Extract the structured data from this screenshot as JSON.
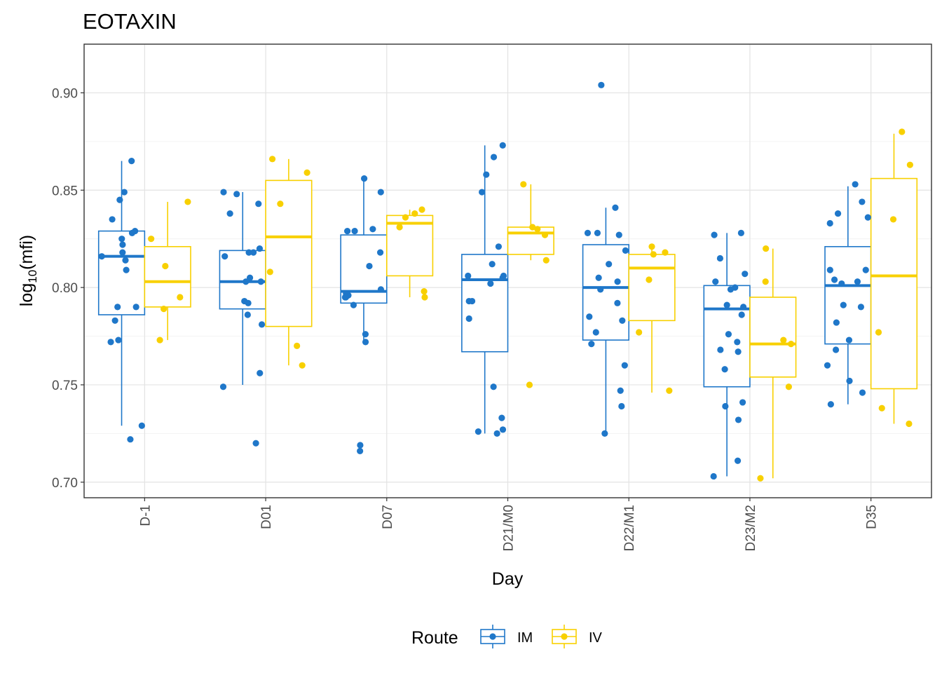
{
  "chart_data": {
    "type": "box",
    "title": "EOTAXIN",
    "xlabel": "Day",
    "ylabel_main": "log",
    "ylabel_sub": "10",
    "ylabel_rest": "(mfi)",
    "ylim": [
      0.692,
      0.925
    ],
    "yticks": [
      0.7,
      0.75,
      0.8,
      0.85,
      0.9
    ],
    "ytick_labels": [
      "0.70",
      "0.75",
      "0.80",
      "0.85",
      "0.90"
    ],
    "categories": [
      "D-1",
      "D01",
      "D07",
      "D21/M0",
      "D22/M1",
      "D23/M2",
      "D35"
    ],
    "grid": true,
    "legend": {
      "title": "Route",
      "position": "bottom"
    },
    "series": [
      {
        "name": "IM",
        "color": "#1f77c9",
        "boxes": [
          {
            "min": 0.729,
            "q1": 0.786,
            "median": 0.816,
            "q3": 0.829,
            "max": 0.865,
            "points": [
              0.865,
              0.849,
              0.845,
              0.835,
              0.829,
              0.828,
              0.825,
              0.822,
              0.818,
              0.816,
              0.814,
              0.809,
              0.79,
              0.79,
              0.783,
              0.773,
              0.772,
              0.729,
              0.722
            ]
          },
          {
            "min": 0.75,
            "q1": 0.789,
            "median": 0.803,
            "q3": 0.819,
            "max": 0.849,
            "points": [
              0.849,
              0.848,
              0.843,
              0.838,
              0.82,
              0.818,
              0.818,
              0.816,
              0.805,
              0.803,
              0.803,
              0.793,
              0.792,
              0.786,
              0.781,
              0.756,
              0.749,
              0.72
            ]
          },
          {
            "min": 0.772,
            "q1": 0.792,
            "median": 0.798,
            "q3": 0.827,
            "max": 0.855,
            "points": [
              0.856,
              0.849,
              0.83,
              0.829,
              0.829,
              0.818,
              0.811,
              0.799,
              0.797,
              0.796,
              0.795,
              0.795,
              0.791,
              0.776,
              0.772,
              0.719,
              0.716
            ]
          },
          {
            "min": 0.725,
            "q1": 0.767,
            "median": 0.804,
            "q3": 0.817,
            "max": 0.873,
            "points": [
              0.873,
              0.867,
              0.858,
              0.849,
              0.821,
              0.812,
              0.806,
              0.806,
              0.805,
              0.802,
              0.793,
              0.793,
              0.784,
              0.749,
              0.733,
              0.727,
              0.726,
              0.725
            ]
          },
          {
            "min": 0.725,
            "q1": 0.773,
            "median": 0.8,
            "q3": 0.822,
            "max": 0.841,
            "points": [
              0.904,
              0.841,
              0.828,
              0.828,
              0.827,
              0.819,
              0.812,
              0.805,
              0.803,
              0.799,
              0.792,
              0.785,
              0.783,
              0.777,
              0.771,
              0.76,
              0.747,
              0.739,
              0.725
            ]
          },
          {
            "min": 0.703,
            "q1": 0.749,
            "median": 0.789,
            "q3": 0.801,
            "max": 0.828,
            "points": [
              0.828,
              0.827,
              0.815,
              0.807,
              0.803,
              0.8,
              0.799,
              0.791,
              0.79,
              0.786,
              0.776,
              0.772,
              0.768,
              0.767,
              0.758,
              0.741,
              0.739,
              0.732,
              0.711,
              0.703
            ]
          },
          {
            "min": 0.74,
            "q1": 0.771,
            "median": 0.801,
            "q3": 0.821,
            "max": 0.852,
            "points": [
              0.853,
              0.844,
              0.838,
              0.836,
              0.833,
              0.809,
              0.809,
              0.804,
              0.803,
              0.802,
              0.791,
              0.79,
              0.782,
              0.773,
              0.768,
              0.76,
              0.752,
              0.746,
              0.74
            ]
          }
        ]
      },
      {
        "name": "IV",
        "color": "#f8d000",
        "boxes": [
          {
            "min": 0.773,
            "q1": 0.79,
            "median": 0.803,
            "q3": 0.821,
            "max": 0.844,
            "points": [
              0.844,
              0.825,
              0.811,
              0.795,
              0.789,
              0.773
            ]
          },
          {
            "min": 0.76,
            "q1": 0.78,
            "median": 0.826,
            "q3": 0.855,
            "max": 0.866,
            "points": [
              0.866,
              0.859,
              0.843,
              0.808,
              0.77,
              0.76
            ]
          },
          {
            "min": 0.795,
            "q1": 0.806,
            "median": 0.833,
            "q3": 0.837,
            "max": 0.84,
            "points": [
              0.84,
              0.838,
              0.836,
              0.831,
              0.798,
              0.795
            ]
          },
          {
            "min": 0.814,
            "q1": 0.817,
            "median": 0.828,
            "q3": 0.831,
            "max": 0.853,
            "points": [
              0.853,
              0.831,
              0.83,
              0.827,
              0.814,
              0.75
            ]
          },
          {
            "min": 0.746,
            "q1": 0.783,
            "median": 0.81,
            "q3": 0.817,
            "max": 0.821,
            "points": [
              0.821,
              0.818,
              0.817,
              0.804,
              0.777,
              0.747
            ]
          },
          {
            "min": 0.702,
            "q1": 0.754,
            "median": 0.771,
            "q3": 0.795,
            "max": 0.82,
            "points": [
              0.82,
              0.803,
              0.773,
              0.771,
              0.749,
              0.702
            ]
          },
          {
            "min": 0.73,
            "q1": 0.748,
            "median": 0.806,
            "q3": 0.856,
            "max": 0.879,
            "points": [
              0.88,
              0.863,
              0.835,
              0.777,
              0.738,
              0.73
            ]
          }
        ]
      }
    ]
  }
}
